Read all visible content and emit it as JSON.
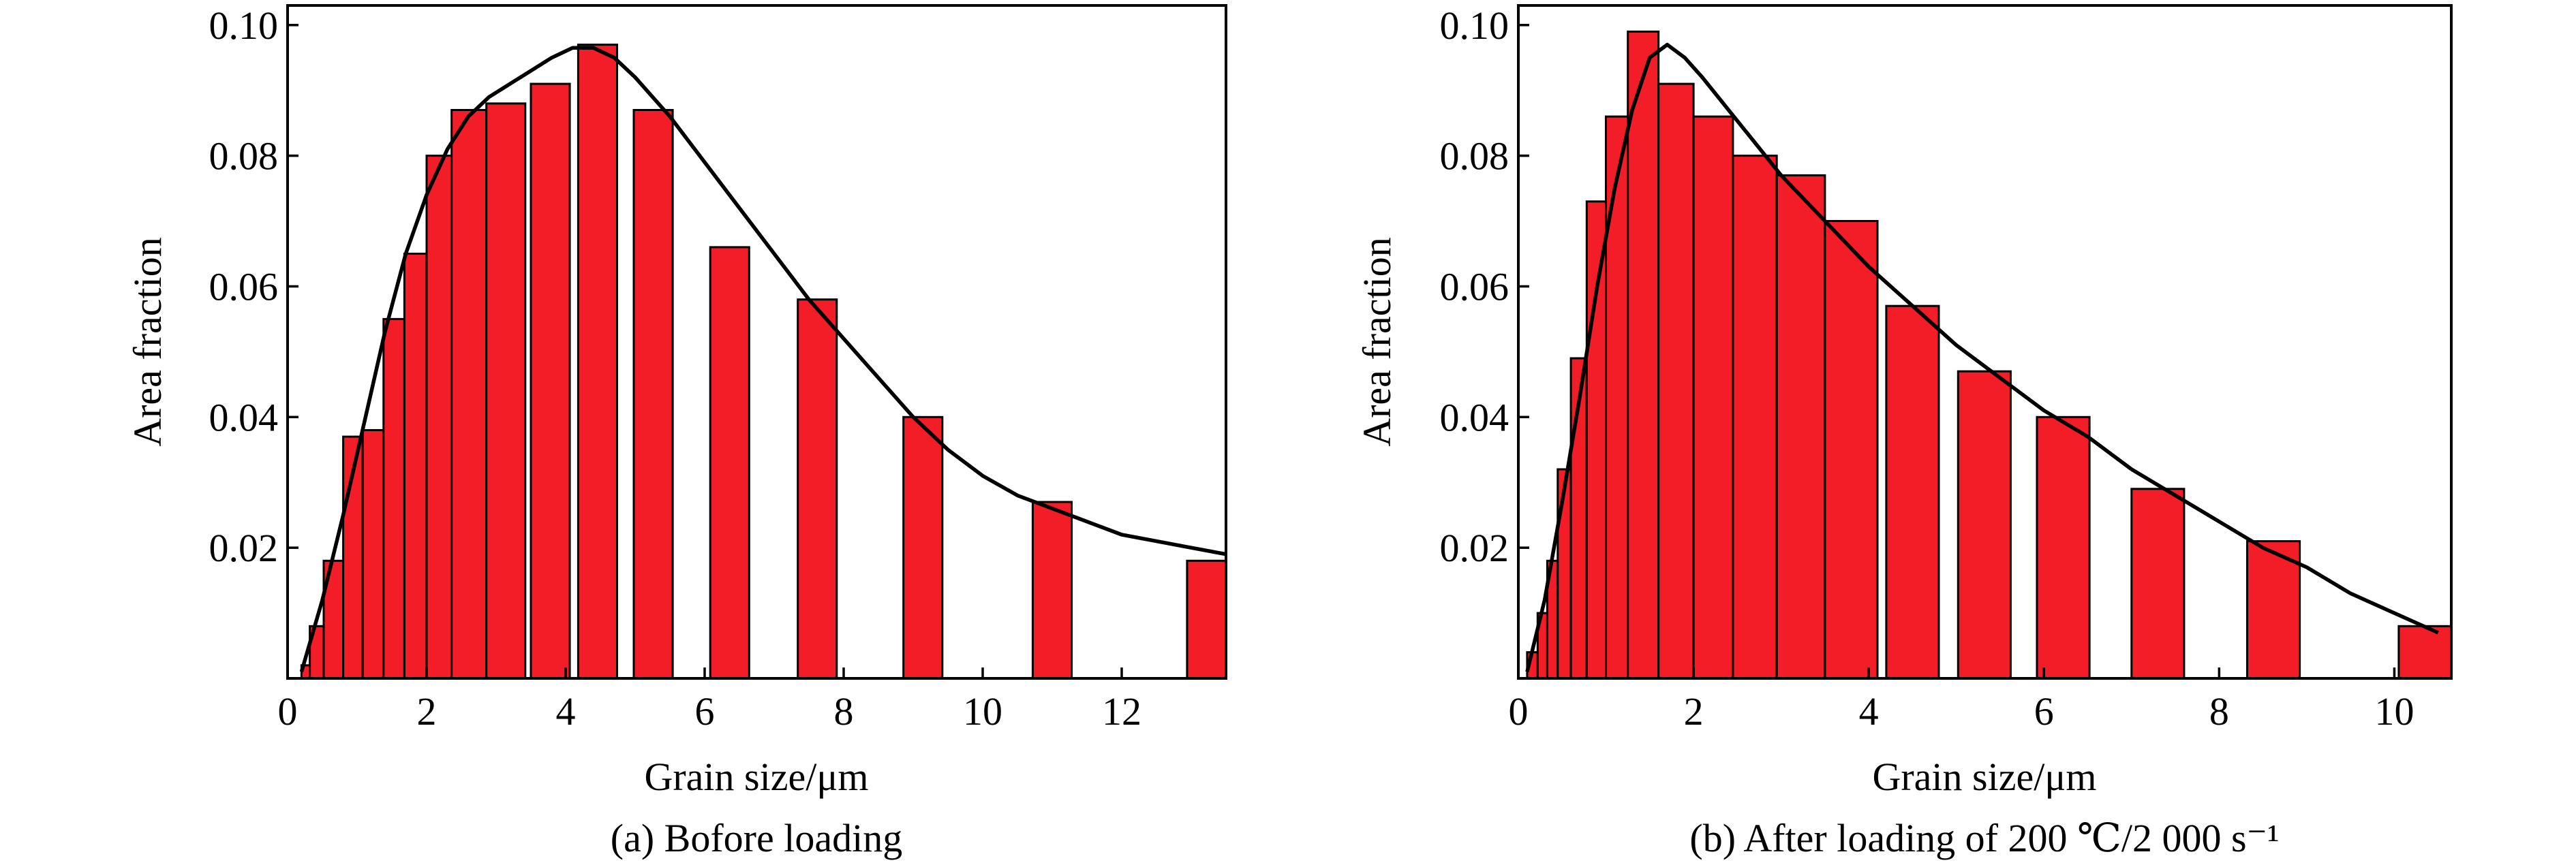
{
  "chart_data": [
    {
      "type": "bar",
      "panel": "a",
      "caption": "(a) Bofore loading",
      "xlabel": "Grain size/μm",
      "ylabel": "Area fraction",
      "xlim": [
        0,
        13.5
      ],
      "ylim": [
        0,
        0.103
      ],
      "xticks": [
        0,
        2,
        4,
        6,
        8,
        10,
        12
      ],
      "xtick_labels": [
        "0",
        "2",
        "4",
        "6",
        "8",
        "10",
        "12"
      ],
      "yticks": [
        0.02,
        0.04,
        0.06,
        0.08,
        0.1
      ],
      "ytick_labels": [
        "0.02",
        "0.04",
        "0.06",
        "0.08",
        "0.10"
      ],
      "bars": [
        {
          "left": 0.2,
          "right": 0.32,
          "value": 0.002
        },
        {
          "left": 0.32,
          "right": 0.52,
          "value": 0.008
        },
        {
          "left": 0.52,
          "right": 0.8,
          "value": 0.018
        },
        {
          "left": 0.8,
          "right": 1.08,
          "value": 0.037
        },
        {
          "left": 1.08,
          "right": 1.38,
          "value": 0.038
        },
        {
          "left": 1.38,
          "right": 1.68,
          "value": 0.055
        },
        {
          "left": 1.68,
          "right": 2.0,
          "value": 0.065
        },
        {
          "left": 2.0,
          "right": 2.36,
          "value": 0.08
        },
        {
          "left": 2.36,
          "right": 2.86,
          "value": 0.087
        },
        {
          "left": 2.86,
          "right": 3.42,
          "value": 0.088
        },
        {
          "left": 3.5,
          "right": 4.06,
          "value": 0.091
        },
        {
          "left": 4.18,
          "right": 4.74,
          "value": 0.097
        },
        {
          "left": 4.98,
          "right": 5.54,
          "value": 0.087
        },
        {
          "left": 6.08,
          "right": 6.64,
          "value": 0.066
        },
        {
          "left": 7.34,
          "right": 7.9,
          "value": 0.058
        },
        {
          "left": 8.86,
          "right": 9.42,
          "value": 0.04
        },
        {
          "left": 10.72,
          "right": 11.28,
          "value": 0.027
        },
        {
          "left": 12.94,
          "right": 13.5,
          "value": 0.018
        }
      ],
      "fit_curve": {
        "x": [
          0.2,
          0.5,
          0.8,
          1.1,
          1.4,
          1.7,
          2.0,
          2.3,
          2.6,
          2.9,
          3.2,
          3.5,
          3.8,
          4.1,
          4.4,
          4.7,
          5.0,
          5.5,
          6.0,
          6.5,
          7.0,
          7.5,
          8.0,
          8.5,
          9.0,
          9.5,
          10.0,
          10.5,
          11.0,
          11.5,
          12.0,
          12.5,
          13.0,
          13.5
        ],
        "y": [
          0.001,
          0.012,
          0.025,
          0.039,
          0.053,
          0.065,
          0.074,
          0.081,
          0.086,
          0.089,
          0.091,
          0.093,
          0.095,
          0.0965,
          0.0965,
          0.095,
          0.092,
          0.086,
          0.079,
          0.072,
          0.065,
          0.058,
          0.052,
          0.046,
          0.04,
          0.035,
          0.031,
          0.028,
          0.026,
          0.024,
          0.022,
          0.021,
          0.02,
          0.019
        ]
      }
    },
    {
      "type": "bar",
      "panel": "b",
      "caption": "(b) After loading of 200 ℃/2 000 s⁻¹",
      "xlabel": "Grain size/μm",
      "ylabel": "Area fraction",
      "xlim": [
        0,
        10.65
      ],
      "ylim": [
        0,
        0.103
      ],
      "xticks": [
        0,
        2,
        4,
        6,
        8,
        10
      ],
      "xtick_labels": [
        "0",
        "2",
        "4",
        "6",
        "8",
        "10"
      ],
      "yticks": [
        0.02,
        0.04,
        0.06,
        0.08,
        0.1
      ],
      "ytick_labels": [
        "0.02",
        "0.04",
        "0.06",
        "0.08",
        "0.10"
      ],
      "bars": [
        {
          "left": 0.1,
          "right": 0.22,
          "value": 0.004
        },
        {
          "left": 0.22,
          "right": 0.33,
          "value": 0.01
        },
        {
          "left": 0.33,
          "right": 0.45,
          "value": 0.018
        },
        {
          "left": 0.45,
          "right": 0.6,
          "value": 0.032
        },
        {
          "left": 0.6,
          "right": 0.78,
          "value": 0.049
        },
        {
          "left": 0.78,
          "right": 1.0,
          "value": 0.073
        },
        {
          "left": 1.0,
          "right": 1.25,
          "value": 0.086
        },
        {
          "left": 1.25,
          "right": 1.6,
          "value": 0.099
        },
        {
          "left": 1.6,
          "right": 2.0,
          "value": 0.091
        },
        {
          "left": 2.0,
          "right": 2.45,
          "value": 0.086
        },
        {
          "left": 2.45,
          "right": 2.95,
          "value": 0.08
        },
        {
          "left": 2.95,
          "right": 3.5,
          "value": 0.077
        },
        {
          "left": 3.5,
          "right": 4.1,
          "value": 0.07
        },
        {
          "left": 4.2,
          "right": 4.8,
          "value": 0.057
        },
        {
          "left": 5.02,
          "right": 5.62,
          "value": 0.047
        },
        {
          "left": 5.92,
          "right": 6.52,
          "value": 0.04
        },
        {
          "left": 7.0,
          "right": 7.6,
          "value": 0.029
        },
        {
          "left": 8.32,
          "right": 8.92,
          "value": 0.021
        },
        {
          "left": 10.05,
          "right": 10.65,
          "value": 0.008
        }
      ],
      "fit_curve": {
        "x": [
          0.1,
          0.3,
          0.5,
          0.7,
          0.9,
          1.1,
          1.3,
          1.5,
          1.7,
          1.9,
          2.1,
          2.4,
          2.7,
          3.0,
          3.5,
          4.0,
          4.5,
          5.0,
          5.5,
          6.0,
          6.5,
          7.0,
          7.5,
          8.0,
          8.5,
          9.0,
          9.5,
          10.0,
          10.5
        ],
        "y": [
          0.001,
          0.012,
          0.027,
          0.043,
          0.06,
          0.075,
          0.087,
          0.095,
          0.097,
          0.095,
          0.092,
          0.087,
          0.082,
          0.077,
          0.07,
          0.063,
          0.057,
          0.051,
          0.046,
          0.041,
          0.037,
          0.032,
          0.028,
          0.024,
          0.02,
          0.017,
          0.013,
          0.01,
          0.007
        ]
      }
    }
  ]
}
